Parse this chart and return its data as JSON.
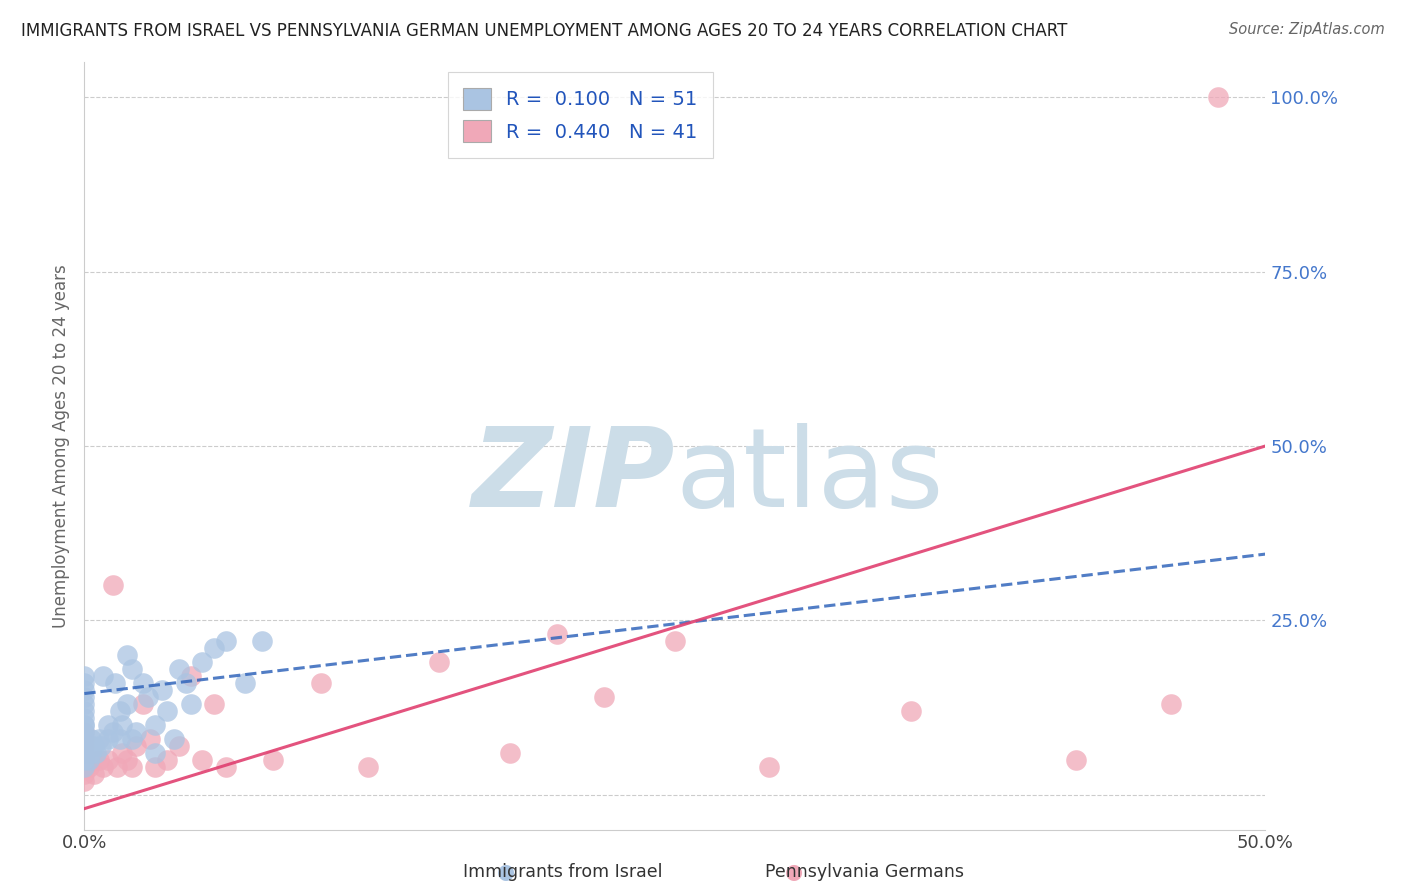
{
  "title": "IMMIGRANTS FROM ISRAEL VS PENNSYLVANIA GERMAN UNEMPLOYMENT AMONG AGES 20 TO 24 YEARS CORRELATION CHART",
  "source": "Source: ZipAtlas.com",
  "ylabel": "Unemployment Among Ages 20 to 24 years",
  "xlim": [
    0.0,
    0.5
  ],
  "ylim": [
    -0.05,
    1.05
  ],
  "xticks": [
    0.0,
    0.5
  ],
  "xtick_labels": [
    "0.0%",
    "50.0%"
  ],
  "yticks": [
    0.0,
    0.25,
    0.5,
    0.75,
    1.0
  ],
  "ytick_labels": [
    "",
    "25.0%",
    "50.0%",
    "75.0%",
    "100.0%"
  ],
  "legend_R_blue": "0.100",
  "legend_N_blue": "51",
  "legend_R_pink": "0.440",
  "legend_N_pink": "41",
  "blue_color": "#aac4e2",
  "blue_line_color": "#3366bb",
  "pink_color": "#f0a8b8",
  "pink_line_color": "#e04070",
  "watermark_color": "#ccdde8",
  "grid_color": "#cccccc",
  "background_color": "#ffffff",
  "blue_x": [
    0.0,
    0.0,
    0.0,
    0.0,
    0.0,
    0.0,
    0.0,
    0.0,
    0.0,
    0.0,
    0.0,
    0.0,
    0.0,
    0.0,
    0.0,
    0.002,
    0.002,
    0.003,
    0.003,
    0.004,
    0.005,
    0.006,
    0.007,
    0.008,
    0.01,
    0.01,
    0.012,
    0.013,
    0.015,
    0.015,
    0.016,
    0.018,
    0.018,
    0.02,
    0.02,
    0.022,
    0.025,
    0.027,
    0.03,
    0.03,
    0.033,
    0.035,
    0.038,
    0.04,
    0.043,
    0.045,
    0.05,
    0.055,
    0.06,
    0.068,
    0.075
  ],
  "blue_y": [
    0.04,
    0.05,
    0.06,
    0.07,
    0.08,
    0.09,
    0.1,
    0.1,
    0.11,
    0.12,
    0.13,
    0.14,
    0.15,
    0.16,
    0.17,
    0.05,
    0.07,
    0.06,
    0.08,
    0.07,
    0.06,
    0.08,
    0.07,
    0.17,
    0.08,
    0.1,
    0.09,
    0.16,
    0.08,
    0.12,
    0.1,
    0.13,
    0.2,
    0.08,
    0.18,
    0.09,
    0.16,
    0.14,
    0.06,
    0.1,
    0.15,
    0.12,
    0.08,
    0.18,
    0.16,
    0.13,
    0.19,
    0.21,
    0.22,
    0.16,
    0.22
  ],
  "pink_x": [
    0.0,
    0.0,
    0.0,
    0.0,
    0.0,
    0.0,
    0.0,
    0.0,
    0.002,
    0.004,
    0.006,
    0.008,
    0.01,
    0.012,
    0.014,
    0.016,
    0.018,
    0.02,
    0.022,
    0.025,
    0.028,
    0.03,
    0.035,
    0.04,
    0.045,
    0.05,
    0.055,
    0.06,
    0.08,
    0.1,
    0.12,
    0.15,
    0.18,
    0.2,
    0.22,
    0.25,
    0.29,
    0.35,
    0.42,
    0.46,
    0.48
  ],
  "pink_y": [
    0.02,
    0.03,
    0.04,
    0.05,
    0.06,
    0.07,
    0.08,
    0.09,
    0.04,
    0.03,
    0.05,
    0.04,
    0.05,
    0.3,
    0.04,
    0.06,
    0.05,
    0.04,
    0.07,
    0.13,
    0.08,
    0.04,
    0.05,
    0.07,
    0.17,
    0.05,
    0.13,
    0.04,
    0.05,
    0.16,
    0.04,
    0.19,
    0.06,
    0.23,
    0.14,
    0.22,
    0.04,
    0.12,
    0.05,
    0.13,
    1.0
  ],
  "blue_trend_x0": 0.0,
  "blue_trend_x1": 0.5,
  "blue_trend_y0": 0.145,
  "blue_trend_y1": 0.345,
  "pink_trend_x0": 0.0,
  "pink_trend_x1": 0.5,
  "pink_trend_y0": -0.02,
  "pink_trend_y1": 0.5
}
